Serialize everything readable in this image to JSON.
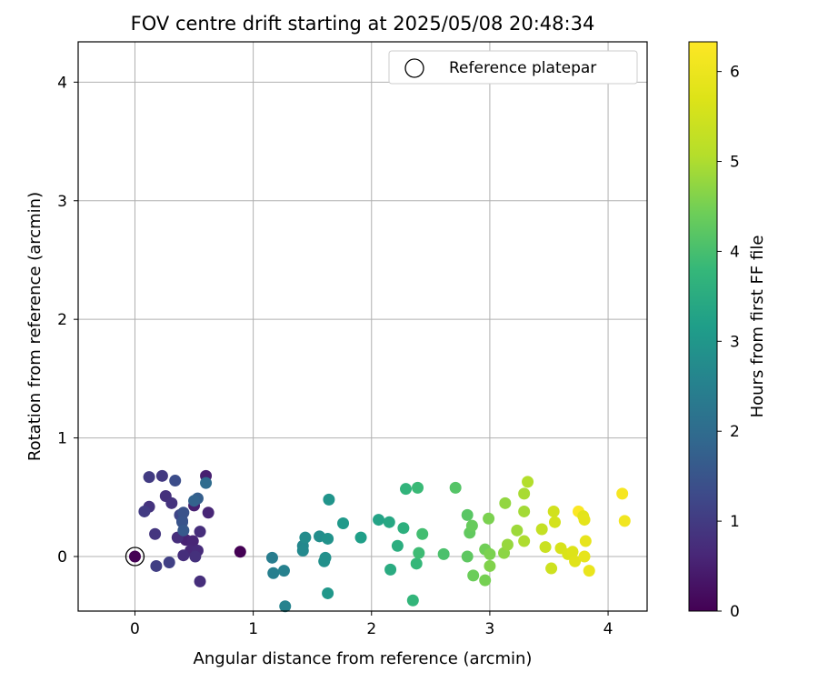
{
  "chart_data": {
    "type": "scatter",
    "title": "FOV centre drift starting at 2025/05/08 20:48:34",
    "xlabel": "Angular distance from reference (arcmin)",
    "ylabel": "Rotation from reference (arcmin)",
    "xlim": [
      -0.48,
      4.33
    ],
    "ylim": [
      -0.46,
      4.34
    ],
    "x_ticks": [
      0,
      1,
      2,
      3,
      4
    ],
    "y_ticks": [
      0,
      1,
      2,
      3,
      4
    ],
    "grid": true,
    "colormap": "viridis",
    "colorbar": {
      "label": "Hours from first FF file",
      "range": [
        0,
        6.33
      ],
      "ticks": [
        0,
        1,
        2,
        3,
        4,
        5,
        6
      ]
    },
    "legend": {
      "position": "top-right",
      "entries": [
        "Reference platepar"
      ]
    },
    "reference_point": {
      "x": 0,
      "y": 0
    },
    "points": [
      {
        "x": 0.89,
        "y": 0.04,
        "h": 0.0
      },
      {
        "x": 0.6,
        "y": 0.68,
        "h": 0.5
      },
      {
        "x": 0.5,
        "y": 0.43,
        "h": 0.5
      },
      {
        "x": 0.62,
        "y": 0.37,
        "h": 0.6
      },
      {
        "x": 0.43,
        "y": 0.14,
        "h": 0.55
      },
      {
        "x": 0.49,
        "y": 0.13,
        "h": 0.6
      },
      {
        "x": 0.47,
        "y": 0.05,
        "h": 0.65
      },
      {
        "x": 0.53,
        "y": 0.05,
        "h": 0.7
      },
      {
        "x": 0.55,
        "y": 0.21,
        "h": 0.75
      },
      {
        "x": 0.55,
        "y": -0.21,
        "h": 0.75
      },
      {
        "x": 0.36,
        "y": 0.16,
        "h": 0.75
      },
      {
        "x": 0.41,
        "y": 0.01,
        "h": 0.75
      },
      {
        "x": 0.51,
        "y": 0.0,
        "h": 0.8
      },
      {
        "x": 0.26,
        "y": 0.51,
        "h": 0.8
      },
      {
        "x": 0.31,
        "y": 0.45,
        "h": 0.85
      },
      {
        "x": 0.12,
        "y": 0.42,
        "h": 0.85
      },
      {
        "x": 0.17,
        "y": 0.19,
        "h": 0.9
      },
      {
        "x": 0.23,
        "y": 0.68,
        "h": 0.95
      },
      {
        "x": 0.12,
        "y": 0.67,
        "h": 1.0
      },
      {
        "x": 0.08,
        "y": 0.38,
        "h": 1.0
      },
      {
        "x": 0.18,
        "y": -0.08,
        "h": 1.05
      },
      {
        "x": 0.29,
        "y": -0.05,
        "h": 1.1
      },
      {
        "x": 0.38,
        "y": 0.35,
        "h": 1.2
      },
      {
        "x": 0.4,
        "y": 0.3,
        "h": 1.3
      },
      {
        "x": 0.34,
        "y": 0.64,
        "h": 1.35
      },
      {
        "x": 0.41,
        "y": 0.37,
        "h": 1.45
      },
      {
        "x": 0.4,
        "y": 0.29,
        "h": 1.5
      },
      {
        "x": 0.41,
        "y": 0.22,
        "h": 1.6
      },
      {
        "x": 0.53,
        "y": 0.49,
        "h": 1.7
      },
      {
        "x": 0.5,
        "y": 0.47,
        "h": 1.8
      },
      {
        "x": 0.6,
        "y": 0.62,
        "h": 2.0
      },
      {
        "x": 1.16,
        "y": -0.01,
        "h": 2.4
      },
      {
        "x": 1.17,
        "y": -0.14,
        "h": 2.45
      },
      {
        "x": 1.26,
        "y": -0.12,
        "h": 2.5
      },
      {
        "x": 1.27,
        "y": -0.42,
        "h": 2.55
      },
      {
        "x": 1.42,
        "y": 0.09,
        "h": 2.65
      },
      {
        "x": 1.42,
        "y": 0.05,
        "h": 2.7
      },
      {
        "x": 1.44,
        "y": 0.16,
        "h": 2.75
      },
      {
        "x": 1.56,
        "y": 0.17,
        "h": 2.8
      },
      {
        "x": 1.6,
        "y": -0.04,
        "h": 2.85
      },
      {
        "x": 1.61,
        "y": -0.01,
        "h": 2.85
      },
      {
        "x": 1.63,
        "y": 0.15,
        "h": 2.9
      },
      {
        "x": 1.64,
        "y": 0.48,
        "h": 2.95
      },
      {
        "x": 1.63,
        "y": -0.31,
        "h": 3.0
      },
      {
        "x": 1.76,
        "y": 0.28,
        "h": 3.05
      },
      {
        "x": 1.91,
        "y": 0.16,
        "h": 3.2
      },
      {
        "x": 2.06,
        "y": 0.31,
        "h": 3.3
      },
      {
        "x": 2.15,
        "y": 0.29,
        "h": 3.4
      },
      {
        "x": 2.16,
        "y": -0.11,
        "h": 3.5
      },
      {
        "x": 2.22,
        "y": 0.09,
        "h": 3.55
      },
      {
        "x": 2.27,
        "y": 0.24,
        "h": 3.6
      },
      {
        "x": 2.29,
        "y": 0.57,
        "h": 3.7
      },
      {
        "x": 2.35,
        "y": -0.37,
        "h": 3.75
      },
      {
        "x": 2.38,
        "y": -0.06,
        "h": 3.8
      },
      {
        "x": 2.39,
        "y": 0.58,
        "h": 3.85
      },
      {
        "x": 2.4,
        "y": 0.03,
        "h": 3.9
      },
      {
        "x": 2.43,
        "y": 0.19,
        "h": 3.95
      },
      {
        "x": 2.61,
        "y": 0.02,
        "h": 4.05
      },
      {
        "x": 2.71,
        "y": 0.58,
        "h": 4.15
      },
      {
        "x": 2.81,
        "y": 0.35,
        "h": 4.2
      },
      {
        "x": 2.81,
        "y": 0.0,
        "h": 4.25
      },
      {
        "x": 2.83,
        "y": 0.2,
        "h": 4.3
      },
      {
        "x": 2.85,
        "y": 0.26,
        "h": 4.35
      },
      {
        "x": 2.86,
        "y": -0.16,
        "h": 4.4
      },
      {
        "x": 2.96,
        "y": 0.06,
        "h": 4.45
      },
      {
        "x": 2.96,
        "y": -0.2,
        "h": 4.5
      },
      {
        "x": 2.99,
        "y": 0.32,
        "h": 4.55
      },
      {
        "x": 3.0,
        "y": 0.02,
        "h": 4.55
      },
      {
        "x": 3.0,
        "y": -0.08,
        "h": 4.6
      },
      {
        "x": 3.12,
        "y": 0.03,
        "h": 4.7
      },
      {
        "x": 3.13,
        "y": 0.45,
        "h": 4.75
      },
      {
        "x": 3.15,
        "y": 0.1,
        "h": 4.8
      },
      {
        "x": 3.23,
        "y": 0.22,
        "h": 4.85
      },
      {
        "x": 3.29,
        "y": 0.38,
        "h": 4.9
      },
      {
        "x": 3.29,
        "y": 0.53,
        "h": 4.95
      },
      {
        "x": 3.29,
        "y": 0.13,
        "h": 5.0
      },
      {
        "x": 3.32,
        "y": 0.63,
        "h": 5.05
      },
      {
        "x": 3.44,
        "y": 0.23,
        "h": 5.3
      },
      {
        "x": 3.47,
        "y": 0.08,
        "h": 5.4
      },
      {
        "x": 3.52,
        "y": -0.1,
        "h": 5.45
      },
      {
        "x": 3.54,
        "y": 0.38,
        "h": 5.5
      },
      {
        "x": 3.55,
        "y": 0.29,
        "h": 5.55
      },
      {
        "x": 3.6,
        "y": 0.07,
        "h": 5.6
      },
      {
        "x": 3.66,
        "y": 0.02,
        "h": 5.65
      },
      {
        "x": 3.7,
        "y": 0.04,
        "h": 5.7
      },
      {
        "x": 3.72,
        "y": -0.04,
        "h": 5.75
      },
      {
        "x": 3.75,
        "y": 0.38,
        "h": 6.3
      },
      {
        "x": 3.79,
        "y": 0.34,
        "h": 5.8
      },
      {
        "x": 3.8,
        "y": 0.31,
        "h": 5.85
      },
      {
        "x": 3.8,
        "y": 0.0,
        "h": 5.9
      },
      {
        "x": 3.81,
        "y": 0.13,
        "h": 5.9
      },
      {
        "x": 3.84,
        "y": -0.12,
        "h": 5.95
      },
      {
        "x": 4.12,
        "y": 0.53,
        "h": 6.2
      },
      {
        "x": 4.14,
        "y": 0.3,
        "h": 6.1
      }
    ]
  }
}
